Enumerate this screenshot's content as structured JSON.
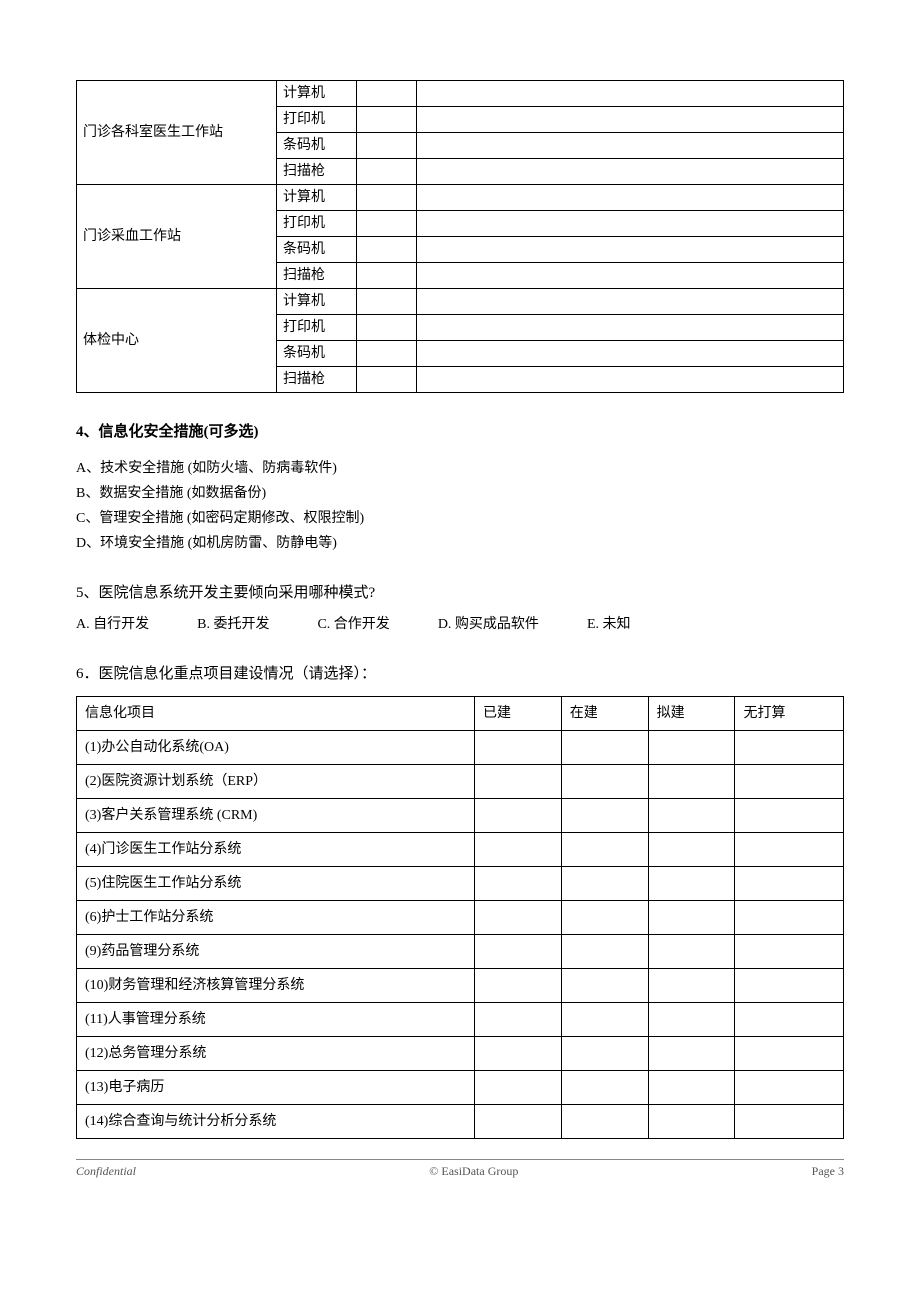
{
  "equipment_table": {
    "groups": [
      {
        "label": "门诊各科室医生工作站",
        "items": [
          "计算机",
          "打印机",
          "条码机",
          "扫描枪"
        ]
      },
      {
        "label": "门诊采血工作站",
        "items": [
          "计算机",
          "打印机",
          "条码机",
          "扫描枪"
        ]
      },
      {
        "label": "体检中心",
        "items": [
          "计算机",
          "打印机",
          "条码机",
          "扫描枪"
        ]
      }
    ]
  },
  "q4": {
    "heading": "4、信息化安全措施(可多选)",
    "options": [
      "A、技术安全措施 (如防火墙、防病毒软件)",
      "B、数据安全措施 (如数据备份)",
      "C、管理安全措施 (如密码定期修改、权限控制)",
      "D、环境安全措施 (如机房防雷、防静电等)"
    ]
  },
  "q5": {
    "heading": "5、医院信息系统开发主要倾向采用哪种模式?",
    "options": [
      "A. 自行开发",
      "B. 委托开发",
      "C. 合作开发",
      "D. 购买成品软件",
      "E. 未知"
    ]
  },
  "q6": {
    "heading": "6．医院信息化重点项目建设情况（请选择）：",
    "header": {
      "col0": "信息化项目",
      "col1": "已建",
      "col2": "在建",
      "col3": "拟建",
      "col4": "无打算"
    },
    "rows": [
      "(1)办公自动化系统(OA)",
      "(2)医院资源计划系统（ERP）",
      "(3)客户关系管理系统 (CRM)",
      "(4)门诊医生工作站分系统",
      "(5)住院医生工作站分系统",
      "(6)护士工作站分系统",
      "(9)药品管理分系统",
      "(10)财务管理和经济核算管理分系统",
      "(11)人事管理分系统",
      "(12)总务管理分系统",
      "(13)电子病历",
      "(14)综合查询与统计分析分系统"
    ]
  },
  "footer": {
    "left": "Confidential",
    "center": "© EasiData Group",
    "right": "Page  3"
  }
}
